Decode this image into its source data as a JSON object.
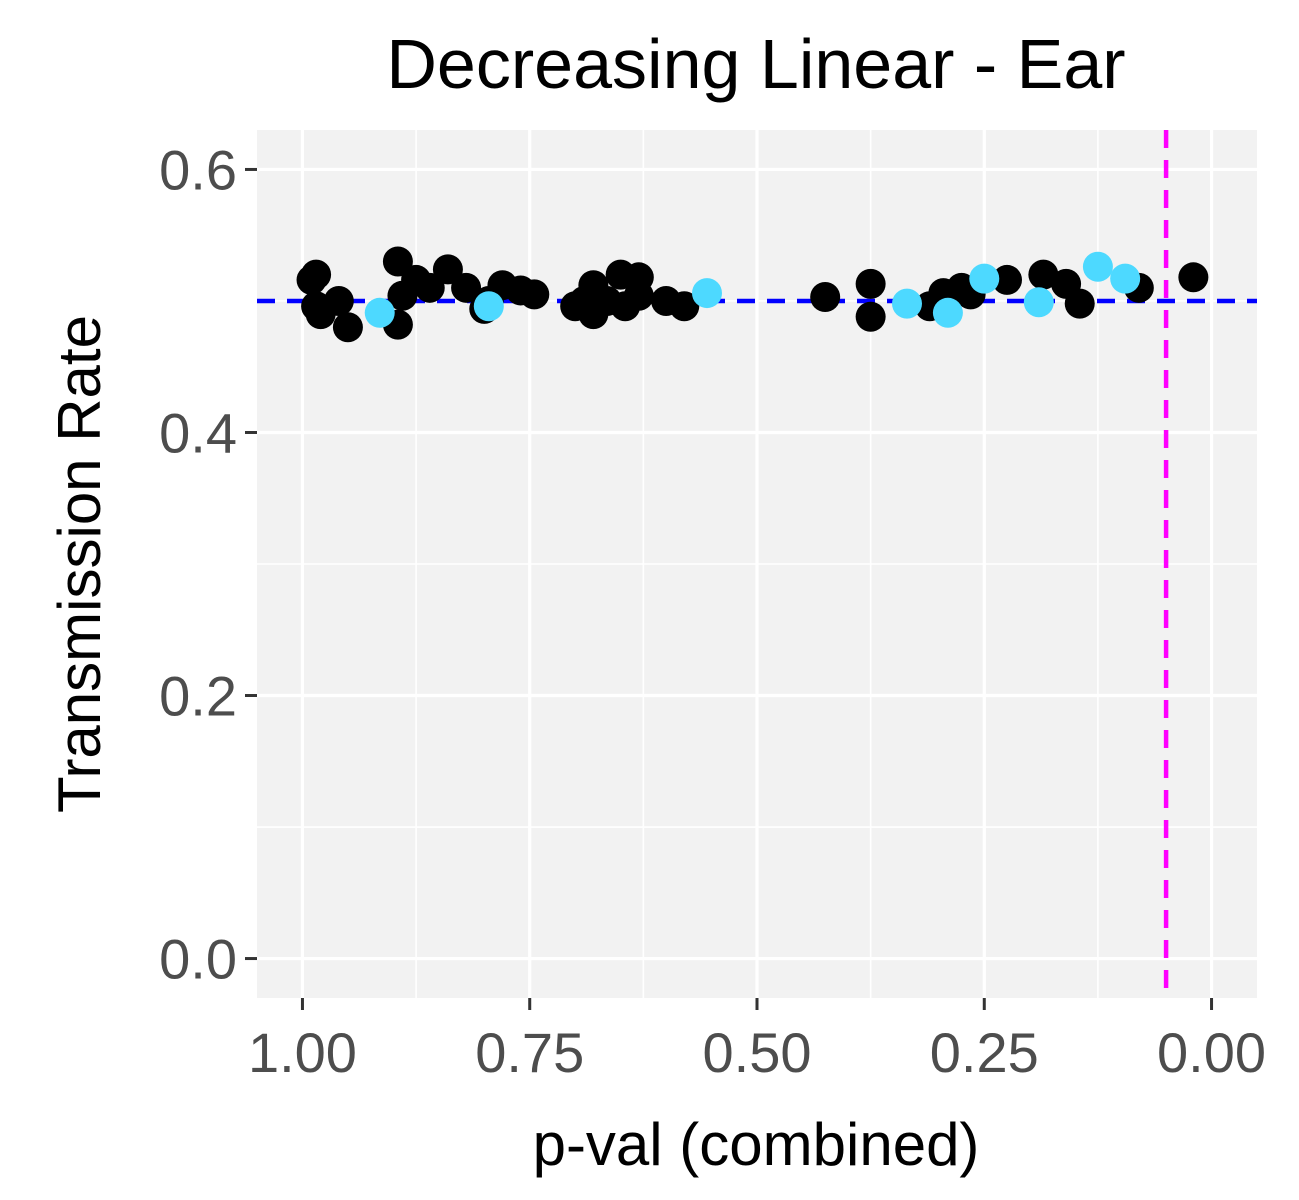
{
  "chart_data": {
    "type": "scatter",
    "title": "Decreasing Linear - Ear",
    "xlabel": "p-val (combined)",
    "ylabel": "Transmission Rate",
    "x_reversed": true,
    "xlim": [
      1.05,
      -0.05
    ],
    "ylim": [
      -0.03,
      0.63
    ],
    "x_ticks": [
      1.0,
      0.75,
      0.5,
      0.25,
      0.0
    ],
    "x_tick_labels": [
      "1.00",
      "0.75",
      "0.50",
      "0.25",
      "0.00"
    ],
    "y_ticks": [
      0.0,
      0.2,
      0.4,
      0.6
    ],
    "y_tick_labels": [
      "0.0",
      "0.2",
      "0.4",
      "0.6"
    ],
    "grid": true,
    "reference_lines": [
      {
        "orientation": "horizontal",
        "value": 0.5,
        "color": "#0000ff",
        "style": "dashed"
      },
      {
        "orientation": "vertical",
        "value": 0.05,
        "color": "#ff00ff",
        "style": "dashed"
      }
    ],
    "series": [
      {
        "color": "#000000",
        "points": [
          [
            0.99,
            0.516
          ],
          [
            0.985,
            0.52
          ],
          [
            0.985,
            0.496
          ],
          [
            0.98,
            0.49
          ],
          [
            0.96,
            0.5
          ],
          [
            0.95,
            0.48
          ],
          [
            0.895,
            0.53
          ],
          [
            0.89,
            0.504
          ],
          [
            0.895,
            0.482
          ],
          [
            0.875,
            0.516
          ],
          [
            0.86,
            0.51
          ],
          [
            0.84,
            0.524
          ],
          [
            0.82,
            0.51
          ],
          [
            0.8,
            0.494
          ],
          [
            0.795,
            0.5
          ],
          [
            0.78,
            0.512
          ],
          [
            0.76,
            0.508
          ],
          [
            0.745,
            0.505
          ],
          [
            0.7,
            0.496
          ],
          [
            0.69,
            0.5
          ],
          [
            0.68,
            0.512
          ],
          [
            0.68,
            0.49
          ],
          [
            0.665,
            0.5
          ],
          [
            0.65,
            0.52
          ],
          [
            0.645,
            0.496
          ],
          [
            0.63,
            0.518
          ],
          [
            0.63,
            0.504
          ],
          [
            0.6,
            0.5
          ],
          [
            0.58,
            0.496
          ],
          [
            0.425,
            0.503
          ],
          [
            0.375,
            0.513
          ],
          [
            0.375,
            0.488
          ],
          [
            0.31,
            0.496
          ],
          [
            0.295,
            0.506
          ],
          [
            0.275,
            0.51
          ],
          [
            0.265,
            0.505
          ],
          [
            0.225,
            0.516
          ],
          [
            0.185,
            0.52
          ],
          [
            0.16,
            0.513
          ],
          [
            0.145,
            0.498
          ],
          [
            0.08,
            0.51
          ],
          [
            0.02,
            0.518
          ]
        ]
      },
      {
        "color": "#4dd9ff",
        "points": [
          [
            0.915,
            0.491
          ],
          [
            0.795,
            0.496
          ],
          [
            0.555,
            0.506
          ],
          [
            0.335,
            0.498
          ],
          [
            0.29,
            0.491
          ],
          [
            0.25,
            0.517
          ],
          [
            0.19,
            0.499
          ],
          [
            0.125,
            0.526
          ],
          [
            0.095,
            0.517
          ]
        ]
      }
    ]
  }
}
